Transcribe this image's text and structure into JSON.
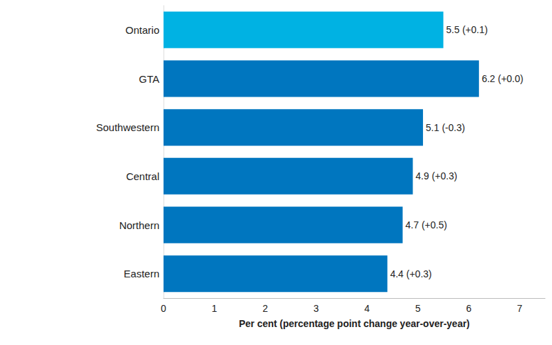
{
  "chart_data": {
    "type": "bar",
    "orientation": "horizontal",
    "x_label": "Per cent (percentage point change year-over-year)",
    "categories": [
      "Ontario",
      "GTA",
      "Southwestern",
      "Central",
      "Northern",
      "Eastern"
    ],
    "values": [
      5.5,
      6.2,
      5.1,
      4.9,
      4.7,
      4.4
    ],
    "value_labels": [
      "5.5 (+0.1)",
      "6.2 (+0.0)",
      "5.1 (-0.3)",
      "4.9 (+0.3)",
      "4.7 (+0.5)",
      "4.4 (+0.3)"
    ],
    "colors": [
      "#00b2e3",
      "#0076bf",
      "#0076bf",
      "#0076bf",
      "#0076bf",
      "#0076bf"
    ],
    "xlim": [
      0,
      7.5
    ],
    "xticks": [
      0,
      1,
      2,
      3,
      4,
      5,
      6,
      7
    ],
    "grid": false,
    "data_labels": true
  }
}
